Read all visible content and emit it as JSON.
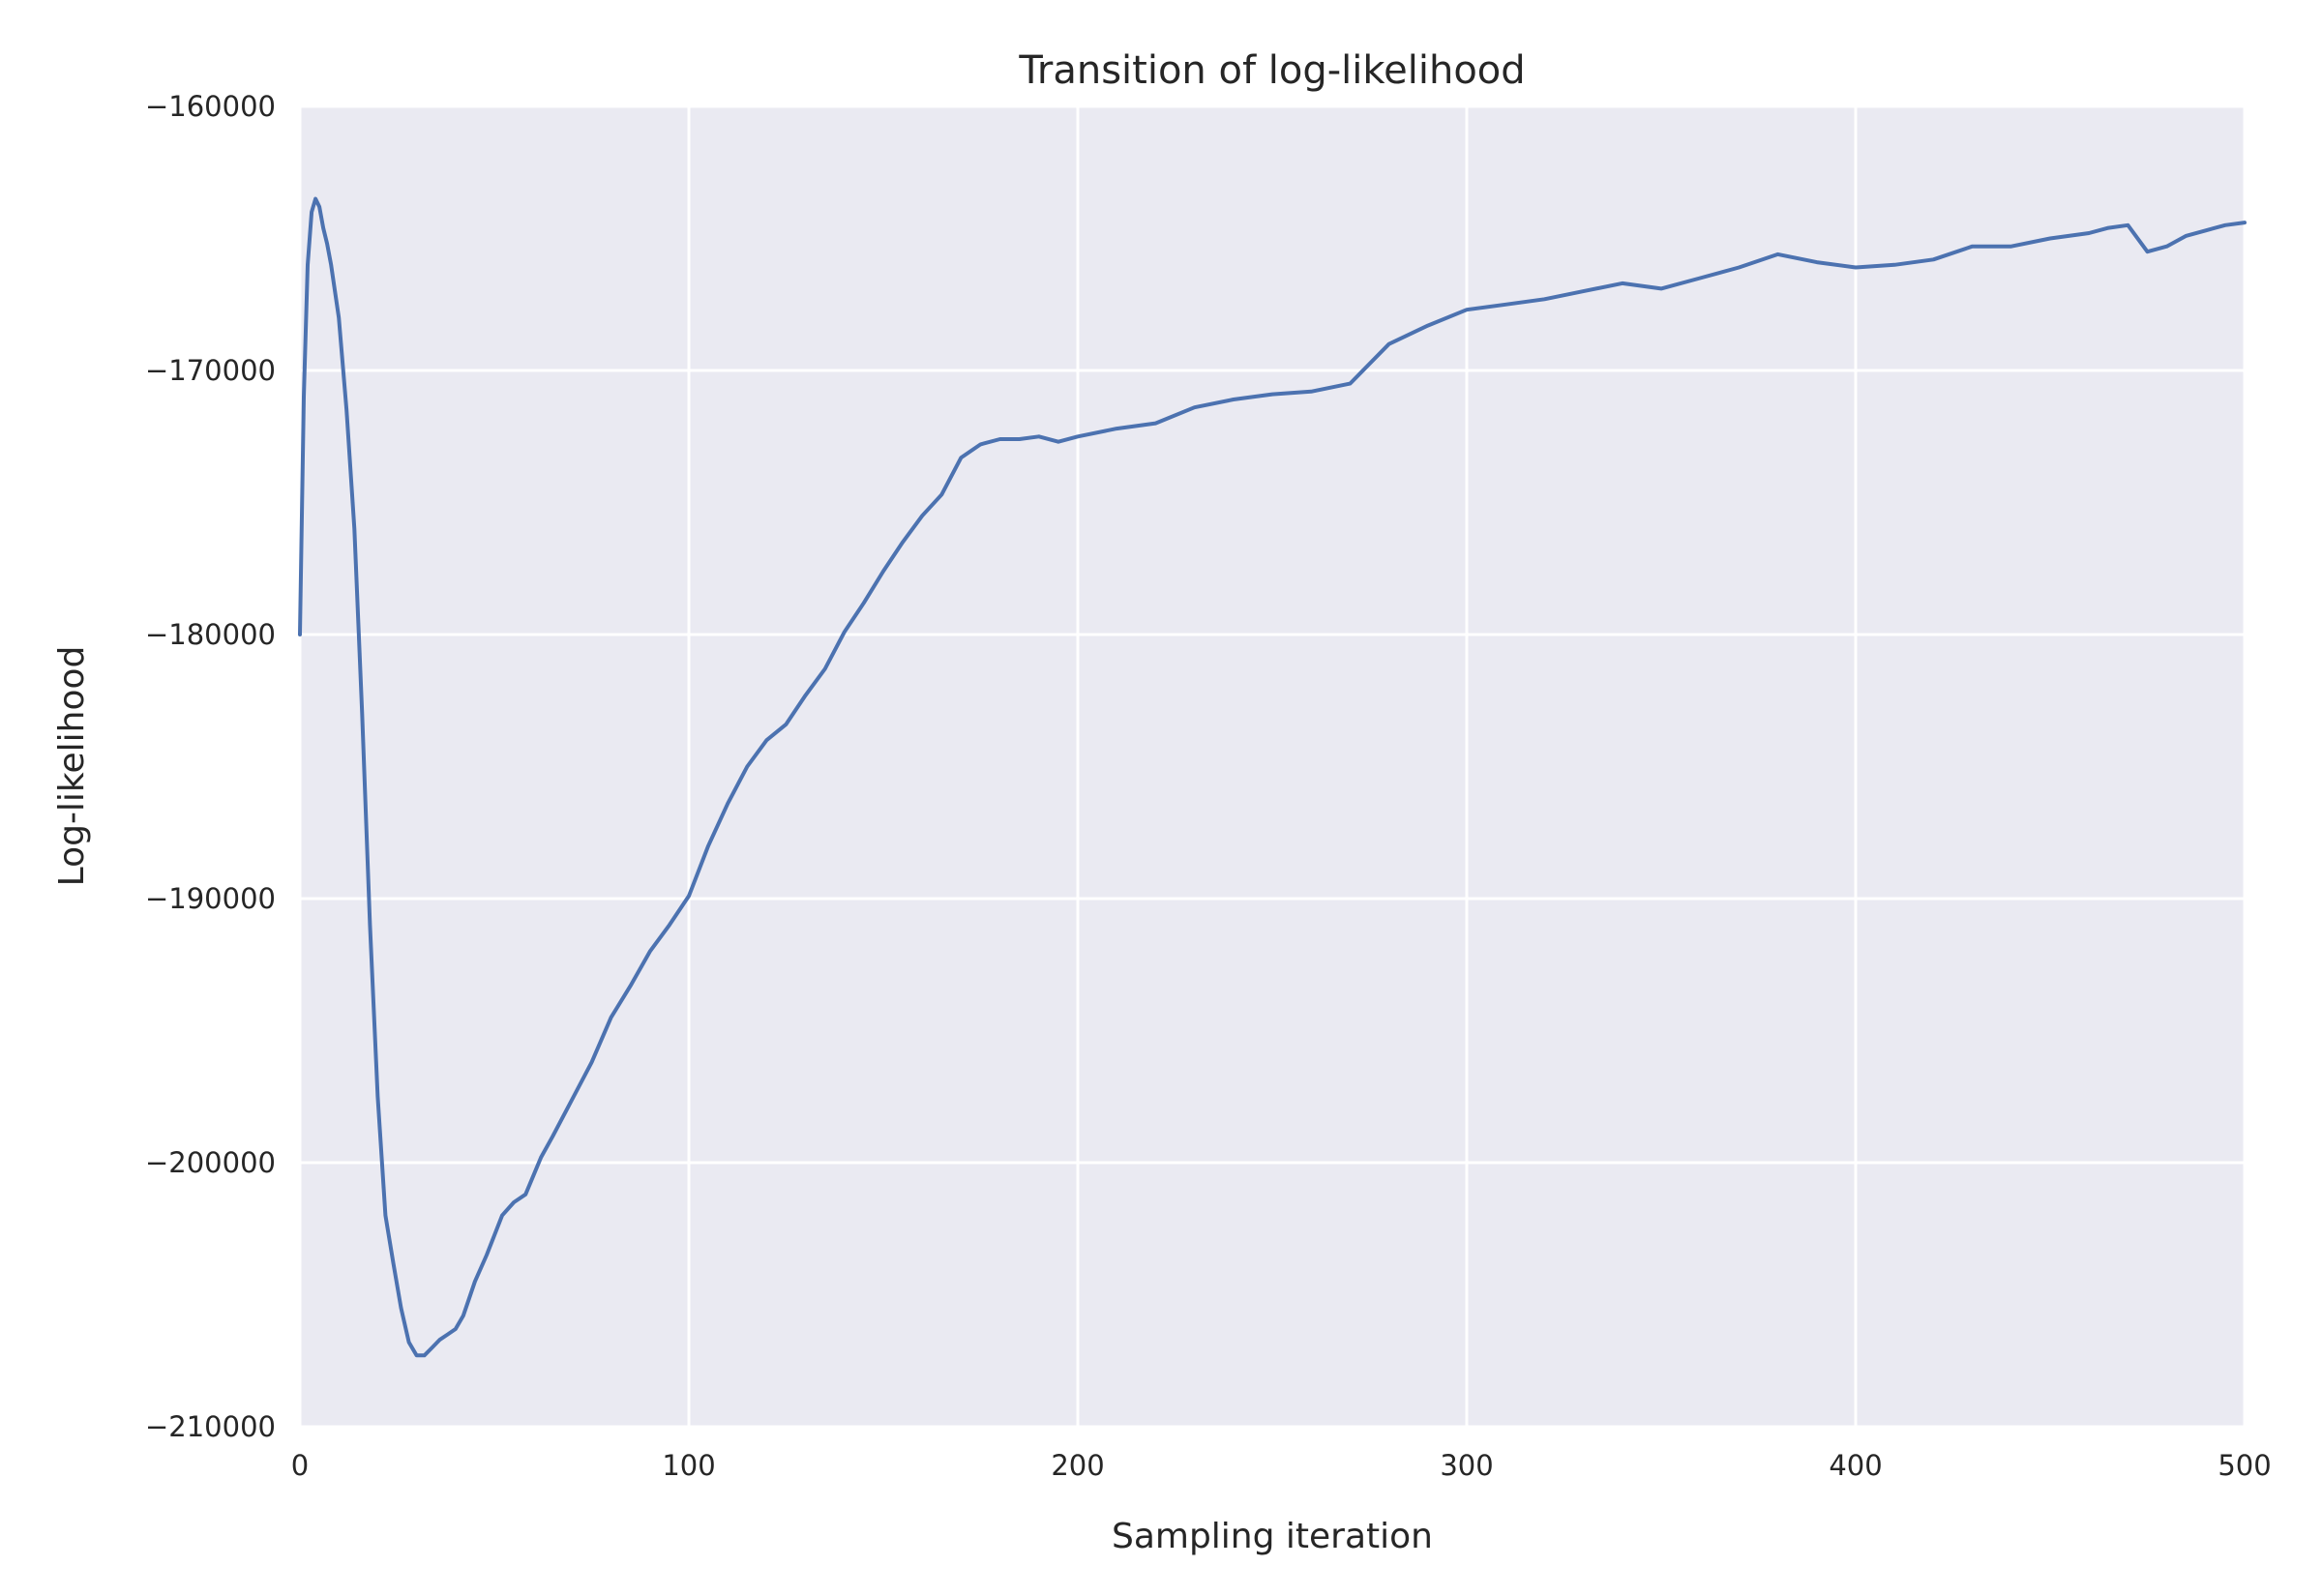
{
  "chart_data": {
    "type": "line",
    "title": "Transition of log-likelihood",
    "xlabel": "Sampling iteration",
    "ylabel": "Log-likelihood",
    "xlim": [
      0,
      500
    ],
    "ylim": [
      -210000,
      -160000
    ],
    "xticks": [
      0,
      100,
      200,
      300,
      400,
      500
    ],
    "xtick_labels": [
      "0",
      "100",
      "200",
      "300",
      "400",
      "500"
    ],
    "yticks": [
      -160000,
      -170000,
      -180000,
      -190000,
      -200000,
      -210000
    ],
    "ytick_labels": [
      "−160000",
      "−170000",
      "−180000",
      "−190000",
      "−200000",
      "−210000"
    ],
    "grid": true,
    "background_color": "#eaeaf2",
    "grid_color": "#ffffff",
    "series": [
      {
        "color": "#4c72b0",
        "x": [
          0,
          1,
          2,
          3,
          4,
          5,
          6,
          7,
          8,
          10,
          12,
          14,
          16,
          18,
          20,
          22,
          24,
          26,
          28,
          30,
          32,
          34,
          36,
          38,
          40,
          42,
          45,
          48,
          52,
          55,
          58,
          60,
          62,
          65,
          70,
          75,
          80,
          85,
          90,
          95,
          100,
          105,
          110,
          115,
          120,
          125,
          130,
          135,
          140,
          145,
          150,
          155,
          160,
          165,
          170,
          175,
          180,
          185,
          190,
          195,
          200,
          210,
          220,
          230,
          240,
          250,
          260,
          270,
          280,
          290,
          300,
          310,
          320,
          330,
          340,
          350,
          360,
          370,
          380,
          390,
          400,
          410,
          420,
          430,
          440,
          450,
          460,
          465,
          470,
          475,
          480,
          485,
          490,
          495,
          500
        ],
        "y": [
          -180000,
          -171000,
          -166000,
          -164000,
          -163500,
          -163800,
          -164600,
          -165200,
          -166000,
          -168000,
          -171500,
          -176000,
          -183000,
          -191000,
          -197500,
          -202000,
          -203800,
          -205500,
          -206800,
          -207300,
          -207300,
          -207000,
          -206700,
          -206500,
          -206300,
          -205800,
          -204500,
          -203500,
          -202000,
          -201500,
          -201200,
          -200500,
          -199800,
          -199000,
          -197600,
          -196200,
          -194500,
          -193300,
          -192000,
          -191000,
          -189900,
          -188000,
          -186400,
          -185000,
          -184000,
          -183400,
          -182300,
          -181300,
          -179900,
          -178800,
          -177600,
          -176500,
          -175500,
          -174700,
          -173300,
          -172800,
          -172600,
          -172600,
          -172500,
          -172700,
          -172500,
          -172200,
          -172000,
          -171400,
          -171100,
          -170900,
          -170800,
          -170500,
          -169000,
          -168300,
          -167700,
          -167500,
          -167300,
          -167000,
          -166700,
          -166900,
          -166500,
          -166100,
          -165600,
          -165900,
          -166100,
          -166000,
          -165800,
          -165300,
          -165300,
          -165000,
          -164800,
          -164600,
          -164500,
          -165500,
          -165300,
          -164900,
          -164700,
          -164500,
          -164400
        ]
      }
    ]
  }
}
